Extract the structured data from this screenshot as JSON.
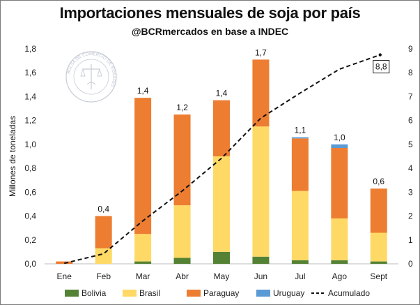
{
  "header": {
    "title": "Importaciones mensuales de soja por país",
    "subtitle": "@BCRmercados en base a INDEC"
  },
  "logo": {
    "text": "BOLSA DE COMERCIO DE ROSARIO"
  },
  "chart_data": {
    "type": "bar",
    "stacked": true,
    "title": "Importaciones mensuales de soja por país",
    "subtitle": "@BCRmercados en base a INDEC",
    "ylabel": "Millones de toneladas",
    "ylim": [
      0,
      1.8
    ],
    "yticks": [
      "0,0",
      "0,2",
      "0,4",
      "0,6",
      "0,8",
      "1,0",
      "1,2",
      "1,4",
      "1,6",
      "1,8"
    ],
    "y2lim": [
      0,
      9
    ],
    "y2ticks": [
      "0",
      "1",
      "2",
      "3",
      "4",
      "5",
      "6",
      "7",
      "8",
      "9"
    ],
    "categories": [
      "Ene",
      "Feb",
      "Mar",
      "Abr",
      "May",
      "Jun",
      "Jul",
      "Ago",
      "Sept"
    ],
    "series": [
      {
        "name": "Bolivia",
        "color": "#548235",
        "values": [
          0.0,
          0.0,
          0.02,
          0.05,
          0.1,
          0.06,
          0.03,
          0.03,
          0.02
        ]
      },
      {
        "name": "Brasil",
        "color": "#FFD966",
        "values": [
          0.0,
          0.13,
          0.23,
          0.44,
          0.8,
          1.09,
          0.58,
          0.35,
          0.24
        ]
      },
      {
        "name": "Paraguay",
        "color": "#ED7D31",
        "values": [
          0.02,
          0.27,
          1.14,
          0.76,
          0.47,
          0.56,
          0.44,
          0.59,
          0.37
        ]
      },
      {
        "name": "Uruguay",
        "color": "#5B9BD5",
        "values": [
          0.0,
          0.0,
          0.0,
          0.0,
          0.0,
          0.0,
          0.01,
          0.03,
          0.0
        ]
      }
    ],
    "totals_labels": [
      "",
      "0,4",
      "1,4",
      "1,2",
      "1,4",
      "1,7",
      "1,1",
      "1,0",
      "0,6"
    ],
    "cumulative": {
      "name": "Acumulado",
      "axis": "right",
      "color": "#111111",
      "values": [
        0.02,
        0.42,
        1.8,
        3.05,
        4.42,
        6.1,
        7.15,
        8.15,
        8.75
      ],
      "end_label": "8,8"
    },
    "legend": {
      "position": "bottom",
      "items": [
        "Bolivia",
        "Brasil",
        "Paraguay",
        "Uruguay",
        "Acumulado"
      ]
    },
    "grid": false
  }
}
